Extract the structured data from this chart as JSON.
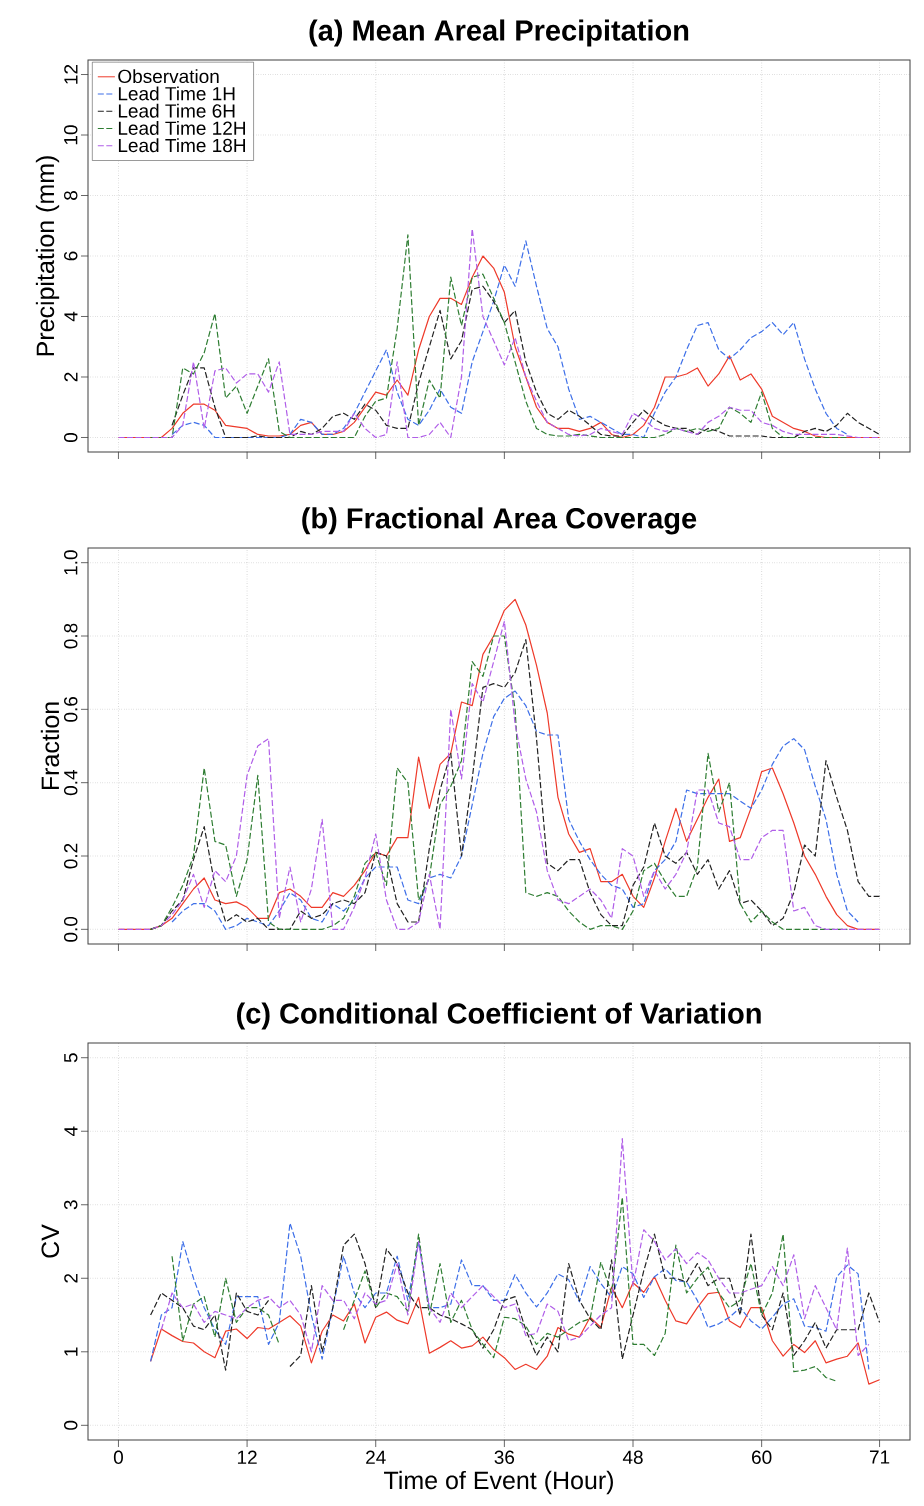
{
  "chart_data": [
    {
      "type": "line",
      "title": "(a) Mean Areal Precipitation",
      "ylabel": "Precipitation (mm)",
      "x": [
        0,
        1,
        2,
        3,
        4,
        5,
        6,
        7,
        8,
        9,
        10,
        11,
        12,
        13,
        14,
        15,
        16,
        17,
        18,
        19,
        20,
        21,
        22,
        23,
        24,
        25,
        26,
        27,
        28,
        29,
        30,
        31,
        32,
        33,
        34,
        35,
        36,
        37,
        38,
        39,
        40,
        41,
        42,
        43,
        44,
        45,
        46,
        47,
        48,
        49,
        50,
        51,
        52,
        53,
        54,
        55,
        56,
        57,
        58,
        59,
        60,
        61,
        62,
        63,
        64,
        65,
        66,
        67,
        68,
        69,
        70,
        71
      ],
      "xlim": [
        -2.84,
        73.84
      ],
      "xticks": [
        0,
        12,
        24,
        36,
        48,
        60,
        71
      ],
      "ylim": [
        -0.48,
        12.48
      ],
      "yticks": [
        0,
        2,
        4,
        6,
        8,
        10,
        12
      ],
      "tick_labels": "y",
      "grid": true,
      "legend": "top left",
      "marker": "none",
      "series": [
        {
          "name": "Observation",
          "color": "#ee3a2a",
          "line_style": "solid",
          "values": [
            0,
            0,
            0,
            0,
            0,
            0.3,
            0.8,
            1.1,
            1.1,
            0.9,
            0.4,
            0.35,
            0.3,
            0.1,
            0.05,
            0.05,
            0.1,
            0.4,
            0.5,
            0.1,
            0.1,
            0.2,
            0.5,
            1.0,
            1.5,
            1.4,
            1.9,
            1.4,
            2.9,
            4.0,
            4.6,
            4.6,
            4.4,
            5.3,
            6.0,
            5.6,
            4.8,
            3.0,
            2.0,
            1.0,
            0.5,
            0.3,
            0.3,
            0.2,
            0.3,
            0.5,
            0.1,
            0,
            0.1,
            0.4,
            1.0,
            2.0,
            2.0,
            2.1,
            2.3,
            1.7,
            2.1,
            2.7,
            1.9,
            2.1,
            1.6,
            0.7,
            0.5,
            0.3,
            0.2,
            0.05,
            0,
            0,
            0,
            0,
            0,
            0
          ]
        },
        {
          "name": "Lead Time 1H",
          "color": "#3d6fe8",
          "line_style": "dashed",
          "values": [
            null,
            null,
            null,
            null,
            null,
            0.1,
            0.4,
            0.5,
            0.4,
            0,
            0,
            0,
            0,
            0,
            0,
            0,
            0.1,
            0.6,
            0.5,
            0.1,
            0.1,
            0.3,
            0.8,
            1.5,
            2.2,
            2.9,
            1.5,
            0.6,
            0.4,
            0.9,
            1.6,
            1.0,
            0.8,
            2.5,
            3.5,
            4.5,
            5.7,
            5.0,
            6.5,
            5.0,
            3.6,
            3.0,
            1.6,
            0.6,
            0.7,
            0.5,
            0.3,
            0.1,
            0.1,
            0,
            0.8,
            1.5,
            2.0,
            2.9,
            3.7,
            3.8,
            2.9,
            2.6,
            2.9,
            3.3,
            3.5,
            3.8,
            3.4,
            3.8,
            2.6,
            1.6,
            0.8,
            0.3,
            0.1,
            null,
            null,
            null
          ]
        },
        {
          "name": "Lead Time 6H",
          "color": "#222222",
          "line_style": "dashed",
          "values": [
            null,
            null,
            null,
            null,
            null,
            0.4,
            1.4,
            2.3,
            2.3,
            1.0,
            0,
            0,
            0,
            0.05,
            0,
            0,
            0,
            0.2,
            0.1,
            0.3,
            0.7,
            0.8,
            0.6,
            1.1,
            0.9,
            0.4,
            0.3,
            0.3,
            1.8,
            3.0,
            4.2,
            2.6,
            3.2,
            4.9,
            5.0,
            4.5,
            3.8,
            4.2,
            2.5,
            1.5,
            0.8,
            0.6,
            0.9,
            0.7,
            0.4,
            0.1,
            0.05,
            0.05,
            0.5,
            0.9,
            0.6,
            0.4,
            0.3,
            0.3,
            0.1,
            0.3,
            0.2,
            0.05,
            0.05,
            0.05,
            0.05,
            0,
            0,
            0,
            0.2,
            0.3,
            0.2,
            0.4,
            0.8,
            0.5,
            0.3,
            0.1
          ]
        },
        {
          "name": "Lead Time 12H",
          "color": "#2e7d32",
          "line_style": "dashed",
          "values": [
            null,
            null,
            null,
            0,
            0,
            0,
            2.3,
            2.1,
            2.8,
            4.1,
            1.3,
            1.7,
            0.8,
            1.7,
            2.6,
            0.2,
            0,
            0,
            0,
            0,
            0,
            0,
            0,
            0.7,
            1.2,
            1.3,
            3.6,
            6.7,
            0.4,
            1.9,
            1.3,
            5.3,
            3.7,
            5.3,
            5.4,
            4.6,
            3.8,
            2.5,
            1.2,
            0.3,
            0.1,
            0.05,
            0.05,
            0.1,
            0.05,
            0,
            0,
            0,
            0,
            0,
            0,
            0.1,
            0.3,
            0.2,
            0.3,
            0.2,
            0.3,
            1.0,
            0.8,
            0.5,
            1.5,
            0.3,
            0,
            0,
            0,
            0,
            0,
            0,
            0,
            null,
            null,
            null
          ]
        },
        {
          "name": "Lead Time 18H",
          "color": "#b05ee8",
          "line_style": "dashed",
          "values": [
            0,
            0,
            0,
            0,
            0,
            0,
            0.4,
            2.5,
            0.3,
            2.2,
            2.3,
            1.8,
            2.1,
            2.1,
            1.5,
            2.5,
            0.1,
            0.1,
            0.1,
            0.2,
            0.2,
            0.2,
            0.8,
            0.3,
            0,
            0.1,
            2.5,
            0,
            0,
            0.1,
            0.5,
            0,
            2.0,
            6.9,
            4.0,
            3.2,
            2.4,
            3.3,
            2.0,
            1.2,
            0.5,
            0.3,
            0.1,
            0.05,
            0.1,
            0.3,
            0.2,
            0.1,
            0.8,
            0.6,
            0.3,
            0.2,
            0.3,
            0.2,
            0.1,
            0.5,
            0.7,
            1.0,
            0.9,
            0.9,
            0.5,
            0.4,
            0.2,
            0.1,
            0.1,
            0.1,
            0.1,
            0.1,
            0.05,
            0,
            0,
            0
          ]
        }
      ]
    },
    {
      "type": "line",
      "title": "(b) Fractional Area Coverage",
      "ylabel": "Fraction",
      "x": [
        0,
        1,
        2,
        3,
        4,
        5,
        6,
        7,
        8,
        9,
        10,
        11,
        12,
        13,
        14,
        15,
        16,
        17,
        18,
        19,
        20,
        21,
        22,
        23,
        24,
        25,
        26,
        27,
        28,
        29,
        30,
        31,
        32,
        33,
        34,
        35,
        36,
        37,
        38,
        39,
        40,
        41,
        42,
        43,
        44,
        45,
        46,
        47,
        48,
        49,
        50,
        51,
        52,
        53,
        54,
        55,
        56,
        57,
        58,
        59,
        60,
        61,
        62,
        63,
        64,
        65,
        66,
        67,
        68,
        69,
        70,
        71
      ],
      "xlim": [
        -2.84,
        73.84
      ],
      "xticks": [
        0,
        12,
        24,
        36,
        48,
        60,
        71
      ],
      "ylim": [
        -0.04,
        1.04
      ],
      "yticks": [
        {
          "value": 0,
          "label": "0.0"
        },
        {
          "value": 0.2,
          "label": "0.2"
        },
        {
          "value": 0.4,
          "label": "0.4"
        },
        {
          "value": 0.6,
          "label": "0.6"
        },
        {
          "value": 0.8,
          "label": "0.8"
        },
        {
          "value": 1,
          "label": "1.0"
        }
      ],
      "tick_labels": "y",
      "grid": true,
      "marker": "none",
      "series": [
        {
          "color": "#ee3a2a",
          "line_style": "solid",
          "values": [
            0,
            0,
            0,
            0,
            0.01,
            0.03,
            0.07,
            0.11,
            0.14,
            0.08,
            0.07,
            0.075,
            0.06,
            0.03,
            0.03,
            0.1,
            0.11,
            0.09,
            0.06,
            0.06,
            0.1,
            0.09,
            0.12,
            0.16,
            0.21,
            0.2,
            0.25,
            0.25,
            0.47,
            0.33,
            0.45,
            0.48,
            0.62,
            0.61,
            0.75,
            0.8,
            0.87,
            0.9,
            0.83,
            0.72,
            0.59,
            0.36,
            0.26,
            0.21,
            0.22,
            0.13,
            0.13,
            0.15,
            0.09,
            0.06,
            0.14,
            0.24,
            0.33,
            0.24,
            0.3,
            0.36,
            0.41,
            0.24,
            0.25,
            0.33,
            0.43,
            0.44,
            0.37,
            0.29,
            0.2,
            0.15,
            0.09,
            0.04,
            0.01,
            0,
            0,
            0
          ]
        },
        {
          "color": "#3d6fe8",
          "line_style": "dashed",
          "values": [
            null,
            null,
            null,
            null,
            null,
            0.02,
            0.05,
            0.07,
            0.07,
            0.05,
            0,
            0.01,
            0.03,
            0.02,
            0.01,
            0.05,
            0.1,
            0.08,
            0.03,
            0.02,
            0.07,
            0.05,
            0.08,
            0.14,
            0.17,
            0.17,
            0.17,
            0.08,
            0.07,
            0.14,
            0.15,
            0.14,
            0.2,
            0.34,
            0.48,
            0.58,
            0.63,
            0.65,
            0.61,
            0.54,
            0.53,
            0.53,
            0.3,
            0.24,
            0.19,
            0.15,
            0.12,
            0.11,
            0.06,
            0.07,
            0.16,
            0.19,
            0.24,
            0.38,
            0.37,
            0.37,
            0.37,
            0.37,
            0.35,
            0.33,
            0.38,
            0.45,
            0.5,
            0.52,
            0.49,
            0.39,
            0.3,
            0.15,
            0.05,
            0.02,
            null,
            null
          ]
        },
        {
          "color": "#222222",
          "line_style": "dashed",
          "values": [
            null,
            null,
            null,
            0,
            0.01,
            0.05,
            0.08,
            0.19,
            0.28,
            0.12,
            0.02,
            0.04,
            0.02,
            0.03,
            0,
            0,
            0,
            0.05,
            0.03,
            0.04,
            0.07,
            0.08,
            0.07,
            0.1,
            0.21,
            0.2,
            0.07,
            0.02,
            0.02,
            0.22,
            0.38,
            0.48,
            0.2,
            0.41,
            0.66,
            0.67,
            0.66,
            0.7,
            0.79,
            0.52,
            0.18,
            0.16,
            0.19,
            0.19,
            0.1,
            0.04,
            0.01,
            0.01,
            0.12,
            0.17,
            0.29,
            0.2,
            0.18,
            0.21,
            0.15,
            0.19,
            0.11,
            0.16,
            0.07,
            0.08,
            0.05,
            0.01,
            0.03,
            0.1,
            0.23,
            0.2,
            0.46,
            0.36,
            0.27,
            0.13,
            0.09,
            0.09
          ]
        },
        {
          "color": "#2e7d32",
          "line_style": "dashed",
          "values": [
            null,
            null,
            null,
            0,
            0.01,
            0.06,
            0.12,
            0.2,
            0.44,
            0.24,
            0.23,
            0.09,
            0.19,
            0.42,
            0.02,
            0,
            0,
            0,
            0,
            0,
            0.01,
            0.03,
            0.09,
            0.18,
            0.21,
            0.12,
            0.44,
            0.4,
            0.08,
            0.14,
            0.34,
            0.39,
            0.46,
            0.73,
            0.69,
            0.8,
            0.8,
            0.6,
            0.1,
            0.09,
            0.1,
            0.09,
            0.05,
            0.02,
            0,
            0.01,
            0.01,
            0,
            0.05,
            0.16,
            0.18,
            0.13,
            0.09,
            0.09,
            0.17,
            0.48,
            0.32,
            0.4,
            0.07,
            0.02,
            0.05,
            0.02,
            0,
            0,
            0,
            0,
            0,
            0,
            0,
            null,
            null,
            null
          ]
        },
        {
          "color": "#b05ee8",
          "line_style": "dashed",
          "values": [
            0,
            0,
            0,
            0,
            0.01,
            0.04,
            0.08,
            0.15,
            0.06,
            0.16,
            0.13,
            0.2,
            0.42,
            0.5,
            0.52,
            0.03,
            0.17,
            0.02,
            0.11,
            0.3,
            0,
            0,
            0.06,
            0.14,
            0.26,
            0.08,
            0,
            0,
            0.02,
            0.15,
            0,
            0.6,
            0.41,
            0.67,
            0.62,
            0.73,
            0.84,
            0.56,
            0.41,
            0.32,
            0.16,
            0.08,
            0.07,
            0.09,
            0.11,
            0.08,
            0.03,
            0.22,
            0.2,
            0.09,
            0.16,
            0.11,
            0.15,
            0.21,
            0.38,
            0.38,
            0.29,
            0.28,
            0.19,
            0.19,
            0.25,
            0.27,
            0.27,
            0.05,
            0.06,
            0.01,
            0,
            0,
            0,
            0,
            0,
            0
          ]
        }
      ]
    },
    {
      "type": "line",
      "title": "(c) Conditional Coefficient of Variation",
      "ylabel": "CV",
      "xlabel": "Time of Event (Hour)",
      "x": [
        3,
        4,
        5,
        6,
        7,
        8,
        9,
        10,
        11,
        12,
        13,
        14,
        15,
        16,
        17,
        18,
        19,
        20,
        21,
        22,
        23,
        24,
        25,
        26,
        27,
        28,
        29,
        30,
        31,
        32,
        33,
        34,
        35,
        36,
        37,
        38,
        39,
        40,
        41,
        42,
        43,
        44,
        45,
        46,
        47,
        48,
        49,
        50,
        51,
        52,
        53,
        54,
        55,
        56,
        57,
        58,
        59,
        60,
        61,
        62,
        63,
        64,
        65,
        66,
        67,
        68,
        69,
        70,
        71
      ],
      "xlim": [
        -2.84,
        73.84
      ],
      "xticks": [
        0,
        12,
        24,
        36,
        48,
        60,
        71
      ],
      "ylim": [
        -0.2,
        5.2
      ],
      "yticks": [
        0,
        1,
        2,
        3,
        4,
        5
      ],
      "grid": true,
      "marker": "none",
      "series": [
        {
          "color": "#ee3a2a",
          "line_style": "solid",
          "values": [
            0.87,
            1.31,
            1.22,
            1.14,
            1.12,
            1.0,
            0.92,
            1.28,
            1.31,
            1.18,
            1.33,
            1.31,
            1.4,
            1.49,
            1.35,
            0.85,
            1.28,
            1.5,
            1.42,
            1.65,
            1.12,
            1.47,
            1.54,
            1.43,
            1.38,
            1.74,
            0.98,
            1.06,
            1.15,
            1.05,
            1.08,
            1.2,
            1.03,
            0.92,
            0.76,
            0.83,
            0.76,
            0.94,
            1.33,
            1.24,
            1.2,
            1.47,
            1.33,
            1.88,
            1.6,
            1.94,
            1.81,
            2.02,
            1.7,
            1.42,
            1.38,
            1.6,
            1.79,
            1.81,
            1.42,
            1.33,
            1.6,
            1.6,
            1.15,
            0.94,
            1.1,
            0.99,
            1.15,
            0.85,
            0.9,
            0.94,
            1.12,
            0.56,
            0.62
          ]
        },
        {
          "color": "#3d6fe8",
          "line_style": "dashed",
          "values": [
            0.87,
            1.5,
            1.6,
            2.5,
            2.0,
            1.6,
            1.3,
            1.1,
            1.75,
            1.75,
            1.75,
            1.1,
            1.4,
            2.75,
            2.3,
            1.5,
            0.9,
            1.6,
            2.3,
            1.8,
            1.6,
            1.8,
            1.8,
            2.3,
            1.7,
            2.5,
            1.6,
            1.6,
            1.65,
            2.25,
            1.9,
            1.9,
            1.7,
            1.7,
            2.05,
            1.8,
            1.61,
            1.8,
            2.06,
            1.98,
            1.68,
            2.16,
            1.93,
            1.74,
            2.16,
            2.06,
            1.74,
            2.02,
            2.13,
            1.97,
            1.95,
            1.7,
            1.33,
            1.38,
            1.47,
            1.6,
            1.42,
            1.31,
            1.47,
            1.65,
            1.72,
            1.35,
            1.33,
            1.28,
            2.02,
            2.18,
            2.06,
            0.76,
            null
          ]
        },
        {
          "color": "#222222",
          "line_style": "dashed",
          "values": [
            1.5,
            1.8,
            1.7,
            1.6,
            1.35,
            1.3,
            1.5,
            0.75,
            1.8,
            1.55,
            1.5,
            1.7,
            null,
            0.8,
            0.95,
            1.9,
            1.0,
            1.6,
            2.45,
            2.6,
            2.2,
            1.6,
            2.4,
            2.2,
            1.8,
            1.6,
            1.6,
            1.5,
            1.45,
            1.38,
            1.3,
            1.05,
            1.3,
            1.7,
            1.75,
            1.3,
            0.95,
            1.2,
            1.0,
            2.2,
            1.7,
            1.45,
            1.3,
            2.25,
            0.9,
            1.5,
            2.1,
            2.6,
            2.0,
            2.0,
            1.95,
            2.2,
            1.9,
            2.0,
            2.0,
            1.5,
            2.6,
            1.5,
            1.3,
            1.8,
            0.95,
            1.15,
            1.4,
            1.05,
            1.3,
            1.3,
            1.3,
            1.8,
            1.4
          ]
        },
        {
          "color": "#2e7d32",
          "line_style": "dashed",
          "values": [
            null,
            null,
            2.3,
            1.15,
            1.65,
            1.75,
            1.2,
            2.0,
            1.4,
            1.6,
            1.6,
            1.5,
            1.1,
            null,
            null,
            null,
            null,
            null,
            1.3,
            1.7,
            2.1,
            1.6,
            1.8,
            1.75,
            1.55,
            2.6,
            1.5,
            2.2,
            1.4,
            1.7,
            1.3,
            1.1,
            0.92,
            1.47,
            1.45,
            1.35,
            1.1,
            1.25,
            1.2,
            1.3,
            1.4,
            1.45,
            2.22,
            1.8,
            3.1,
            1.1,
            1.1,
            0.95,
            1.25,
            2.45,
            1.8,
            2.0,
            2.15,
            1.8,
            1.6,
            1.7,
            2.2,
            1.5,
            1.8,
            2.6,
            0.73,
            0.75,
            0.8,
            0.65,
            0.6,
            null,
            null,
            null,
            null
          ]
        },
        {
          "color": "#b05ee8",
          "line_style": "dashed",
          "values": [
            null,
            1.3,
            1.8,
            1.6,
            1.65,
            1.4,
            1.55,
            1.5,
            1.45,
            1.6,
            1.7,
            1.75,
            1.6,
            1.7,
            1.5,
            1.0,
            1.9,
            1.7,
            1.7,
            1.45,
            1.8,
            1.65,
            1.7,
            2.2,
            1.5,
            2.5,
            1.6,
            1.4,
            1.8,
            1.6,
            1.75,
            1.9,
            1.75,
            1.6,
            1.65,
            1.22,
            1.25,
            1.65,
            1.55,
            1.15,
            1.2,
            1.35,
            1.5,
            1.6,
            3.9,
            1.9,
            2.66,
            2.5,
            2.25,
            2.4,
            2.2,
            2.35,
            2.25,
            2.0,
            1.8,
            1.8,
            1.85,
            1.9,
            2.16,
            1.9,
            2.32,
            1.45,
            1.9,
            1.6,
            1.3,
            2.41,
            0.95,
            1.1,
            null
          ]
        }
      ]
    }
  ]
}
